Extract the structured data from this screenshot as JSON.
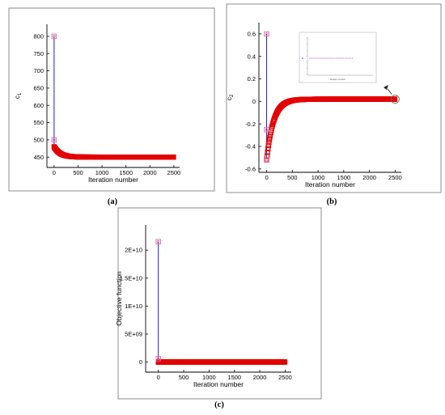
{
  "colors": {
    "series": "#e30000",
    "vertical_line": "#1d1de0",
    "frame": "#8c8c8c"
  },
  "chart_data": [
    {
      "type": "line",
      "caption": "(a)",
      "xlabel": "Iteration number",
      "ylabel": "c",
      "ylabel_subscript": "1",
      "xlim": [
        -150,
        2620
      ],
      "ylim": [
        420,
        835
      ],
      "x_ticks": [
        0,
        500,
        1000,
        1500,
        2000,
        2500
      ],
      "x_tick_labels": [
        "0",
        "500",
        "1000",
        "1500",
        "2000",
        "2500"
      ],
      "y_ticks": [
        450,
        500,
        550,
        600,
        650,
        700,
        750,
        800
      ],
      "y_tick_labels": [
        "450",
        "500",
        "550",
        "600",
        "650",
        "700",
        "750",
        "800"
      ],
      "spike": {
        "x": 0,
        "y_low": 480,
        "y_high": 800,
        "markers": [
          800,
          500
        ]
      },
      "curve": {
        "start_x": 0,
        "start_y": 480,
        "end_x": 2500,
        "final_y": 450,
        "decay_rate": 0.008
      }
    },
    {
      "type": "line",
      "caption": "(b)",
      "xlabel": "Iteration number",
      "ylabel": "c",
      "ylabel_subscript": "2",
      "xlim": [
        -150,
        2620
      ],
      "ylim": [
        -0.63,
        0.7
      ],
      "x_ticks": [
        0,
        500,
        1000,
        1500,
        2000,
        2500
      ],
      "x_tick_labels": [
        "0",
        "500",
        "1000",
        "1500",
        "2000",
        "2500"
      ],
      "y_ticks": [
        -0.6,
        -0.4,
        -0.2,
        0,
        0.2,
        0.4,
        0.6
      ],
      "y_tick_labels": [
        "-0.6",
        "-0.4",
        "-0.2",
        "0",
        "0.2",
        "0.4",
        "0.6"
      ],
      "spike": {
        "x": 0,
        "y_low": -0.5,
        "y_high": 0.6,
        "markers": [
          0.6,
          -0.25,
          -0.52
        ]
      },
      "curve": {
        "start_x": 0,
        "start_y": -0.52,
        "end_x": 2500,
        "final_y": 0.02,
        "decay_rate": 0.0075
      },
      "zoom_circle": {
        "x": 2500,
        "y": 0.02
      },
      "inset_note": "Iteration number"
    },
    {
      "type": "line",
      "caption": "(c)",
      "xlabel": "Iteration number",
      "ylabel": "Objective function",
      "xlim": [
        -250,
        2620
      ],
      "ylim": [
        -1800000000.0,
        24500000000.0
      ],
      "x_ticks": [
        0,
        500,
        1000,
        1500,
        2000,
        2500
      ],
      "x_tick_labels": [
        "0",
        "500",
        "1000",
        "1500",
        "2000",
        "2500"
      ],
      "y_ticks": [
        0,
        5000000000.0,
        10000000000.0,
        15000000000.0,
        20000000000.0
      ],
      "y_tick_labels": [
        "0",
        "5E+09",
        "1E+10",
        "1.5E+10",
        "2E+10"
      ],
      "spike": {
        "x": 0,
        "y_low": 0,
        "y_high": 21500000000.0,
        "markers": [
          21500000000.0,
          600000000.0
        ]
      },
      "curve": {
        "start_x": 0,
        "start_y": 0,
        "end_x": 2500,
        "final_y": 0,
        "decay_rate": 0.01
      }
    }
  ]
}
